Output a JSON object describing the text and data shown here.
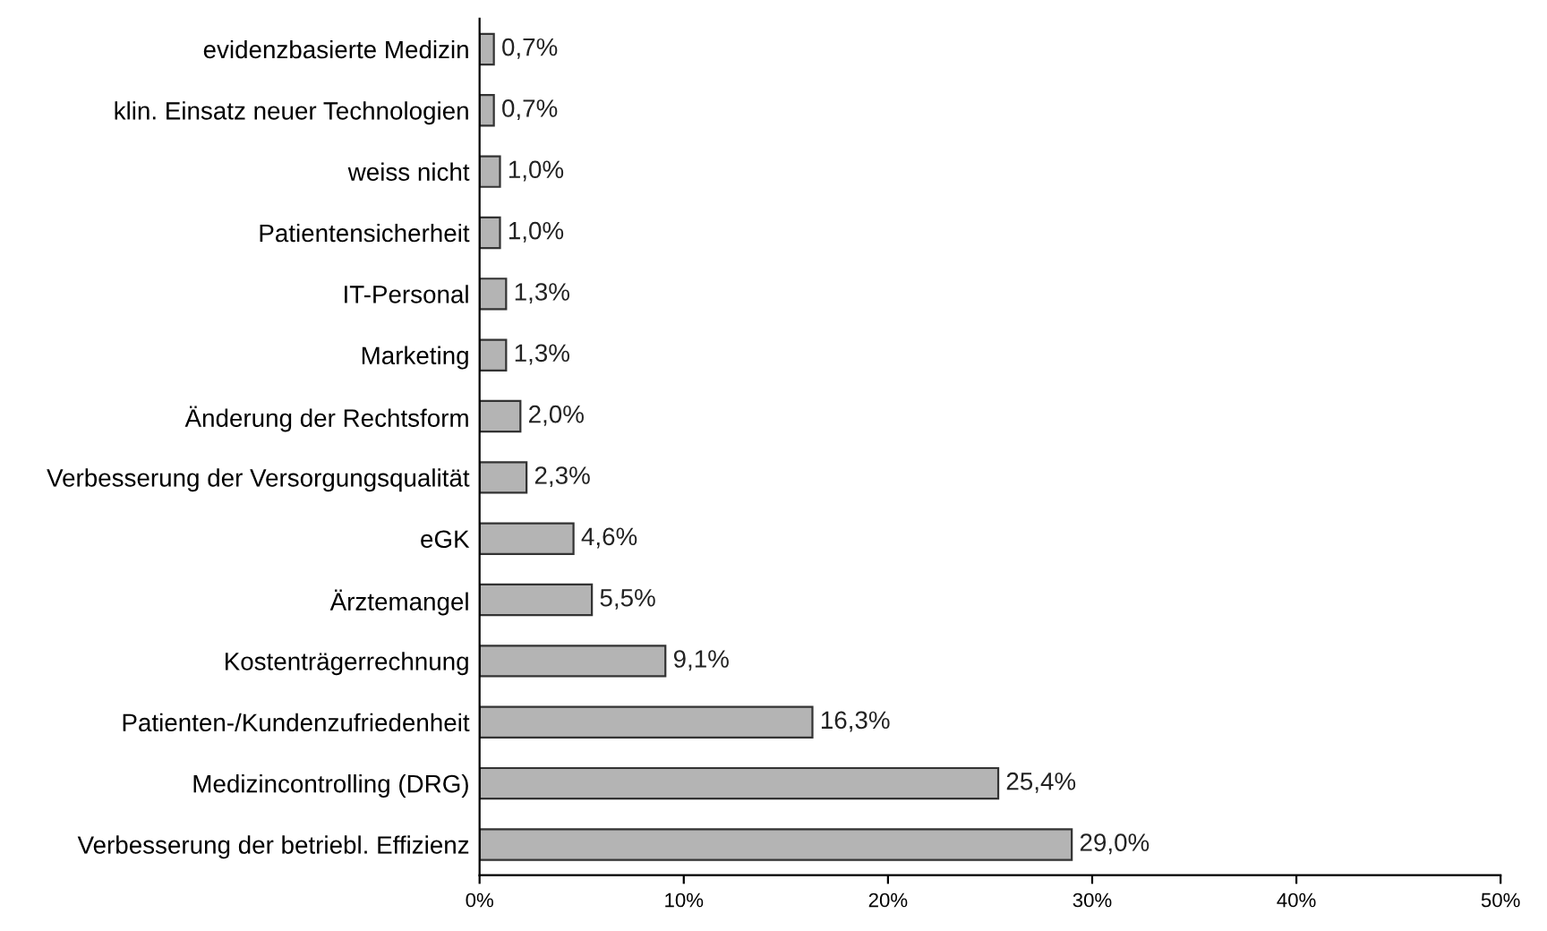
{
  "chart_data": {
    "type": "bar",
    "orientation": "horizontal",
    "categories": [
      "evidenzbasierte Medizin",
      "klin. Einsatz neuer Technologien",
      "weiss nicht",
      "Patientensicherheit",
      "IT-Personal",
      "Marketing",
      "Änderung der Rechtsform",
      "Verbesserung der Versorgungsqualität",
      "eGK",
      "Ärztemangel",
      "Kostenträgerrechnung",
      "Patienten-/Kundenzufriedenheit",
      "Medizincontrolling (DRG)",
      "Verbesserung der betriebl. Effizienz"
    ],
    "values": [
      0.7,
      0.7,
      1.0,
      1.0,
      1.3,
      1.3,
      2.0,
      2.3,
      4.6,
      5.5,
      9.1,
      16.3,
      25.4,
      29.0
    ],
    "value_labels": [
      "0,7%",
      "0,7%",
      "1,0%",
      "1,0%",
      "1,3%",
      "1,3%",
      "2,0%",
      "2,3%",
      "4,6%",
      "5,5%",
      "9,1%",
      "16,3%",
      "25,4%",
      "29,0%"
    ],
    "color": "#b4b4b4",
    "xlim": [
      0,
      50
    ],
    "xticks": [
      {
        "value": 0,
        "label": "0%"
      },
      {
        "value": 10,
        "label": "10%"
      },
      {
        "value": 20,
        "label": "20%"
      },
      {
        "value": 30,
        "label": "30%"
      },
      {
        "value": 40,
        "label": "40%"
      },
      {
        "value": 50,
        "label": "50%"
      }
    ],
    "grid": false
  }
}
